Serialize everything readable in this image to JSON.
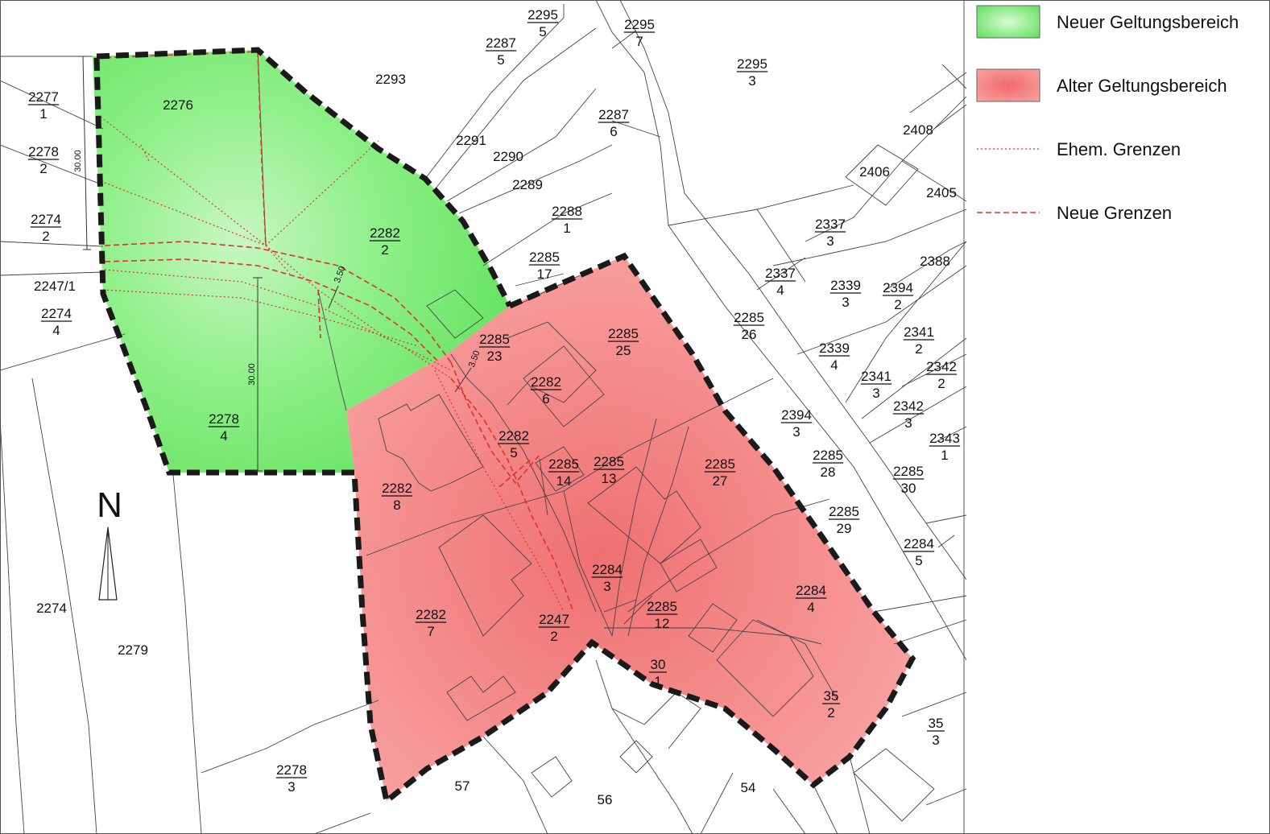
{
  "legend": {
    "new_area": "Neuer Geltungsbereich",
    "old_area": "Alter Geltungsbereich",
    "former_borders": "Ehem. Grenzen",
    "new_borders": "Neue Grenzen"
  },
  "colors": {
    "new_area": "#7fe87a",
    "old_area": "#f58c8c",
    "boundary": "#1a1a1a",
    "border_red": "#e03030"
  },
  "north_label": "N",
  "dimensions": [
    "30.00",
    "30.00",
    "3.50",
    "3.50"
  ],
  "parcels": [
    {
      "num": "2295",
      "sub": "5"
    },
    {
      "num": "2295",
      "sub": "7"
    },
    {
      "num": "2287",
      "sub": "5"
    },
    {
      "num": "2293",
      "sub": ""
    },
    {
      "num": "2295",
      "sub": "3"
    },
    {
      "num": "2277",
      "sub": "1"
    },
    {
      "num": "2276",
      "sub": ""
    },
    {
      "num": "2287",
      "sub": "6"
    },
    {
      "num": "2278",
      "sub": "2"
    },
    {
      "num": "2291",
      "sub": ""
    },
    {
      "num": "2290",
      "sub": ""
    },
    {
      "num": "2408",
      "sub": ""
    },
    {
      "num": "2406",
      "sub": ""
    },
    {
      "num": "2289",
      "sub": ""
    },
    {
      "num": "2405",
      "sub": ""
    },
    {
      "num": "2274",
      "sub": "2"
    },
    {
      "num": "2288",
      "sub": "1"
    },
    {
      "num": "2282",
      "sub": "2"
    },
    {
      "num": "2337",
      "sub": "3"
    },
    {
      "num": "2285",
      "sub": "17"
    },
    {
      "num": "2388",
      "sub": ""
    },
    {
      "num": "2247/1",
      "sub": ""
    },
    {
      "num": "2337",
      "sub": "4"
    },
    {
      "num": "2339",
      "sub": "3"
    },
    {
      "num": "2394",
      "sub": "2"
    },
    {
      "num": "2274",
      "sub": "4"
    },
    {
      "num": "2285",
      "sub": "26"
    },
    {
      "num": "2285",
      "sub": "25"
    },
    {
      "num": "2341",
      "sub": "2"
    },
    {
      "num": "2285",
      "sub": "23"
    },
    {
      "num": "2339",
      "sub": "4"
    },
    {
      "num": "2342",
      "sub": "2"
    },
    {
      "num": "2282",
      "sub": "6"
    },
    {
      "num": "2341",
      "sub": "3"
    },
    {
      "num": "2394",
      "sub": "3"
    },
    {
      "num": "2342",
      "sub": "3"
    },
    {
      "num": "2278",
      "sub": "4"
    },
    {
      "num": "2282",
      "sub": "5"
    },
    {
      "num": "2343",
      "sub": "1"
    },
    {
      "num": "2285",
      "sub": "14"
    },
    {
      "num": "2285",
      "sub": "13"
    },
    {
      "num": "2285",
      "sub": "27"
    },
    {
      "num": "2285",
      "sub": "28"
    },
    {
      "num": "2285",
      "sub": "30"
    },
    {
      "num": "2282",
      "sub": "8"
    },
    {
      "num": "2285",
      "sub": "29"
    },
    {
      "num": "2284",
      "sub": "5"
    },
    {
      "num": "2284",
      "sub": "3"
    },
    {
      "num": "2274",
      "sub": ""
    },
    {
      "num": "2284",
      "sub": "4"
    },
    {
      "num": "2285",
      "sub": "12"
    },
    {
      "num": "2282",
      "sub": "7"
    },
    {
      "num": "2247",
      "sub": "2"
    },
    {
      "num": "2279",
      "sub": ""
    },
    {
      "num": "30",
      "sub": "1"
    },
    {
      "num": "35",
      "sub": "2"
    },
    {
      "num": "35",
      "sub": "3"
    },
    {
      "num": "2278",
      "sub": "3"
    },
    {
      "num": "57",
      "sub": ""
    },
    {
      "num": "56",
      "sub": ""
    },
    {
      "num": "54",
      "sub": ""
    }
  ]
}
